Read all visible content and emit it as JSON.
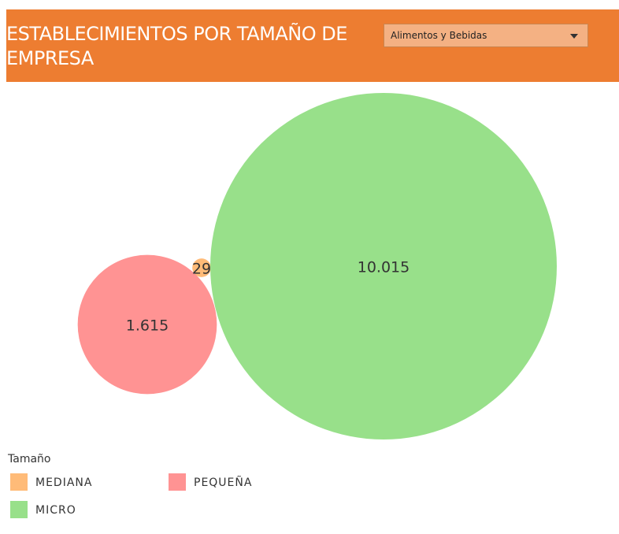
{
  "header": {
    "title": "ESTABLECIMIENTOS POR TAMAÑO DE EMPRESA",
    "filter": "Alimentos y Bebidas"
  },
  "chart_data": {
    "type": "bubble",
    "legend_title": "Tamaño",
    "categories": [
      "MEDIANA",
      "PEQUEÑA",
      "MICRO"
    ],
    "values": [
      29,
      1615,
      10015
    ],
    "value_labels": [
      "29",
      "1.615",
      "10.015"
    ],
    "colors": [
      "#ffbb78",
      "#ff9393",
      "#98e08a"
    ]
  }
}
